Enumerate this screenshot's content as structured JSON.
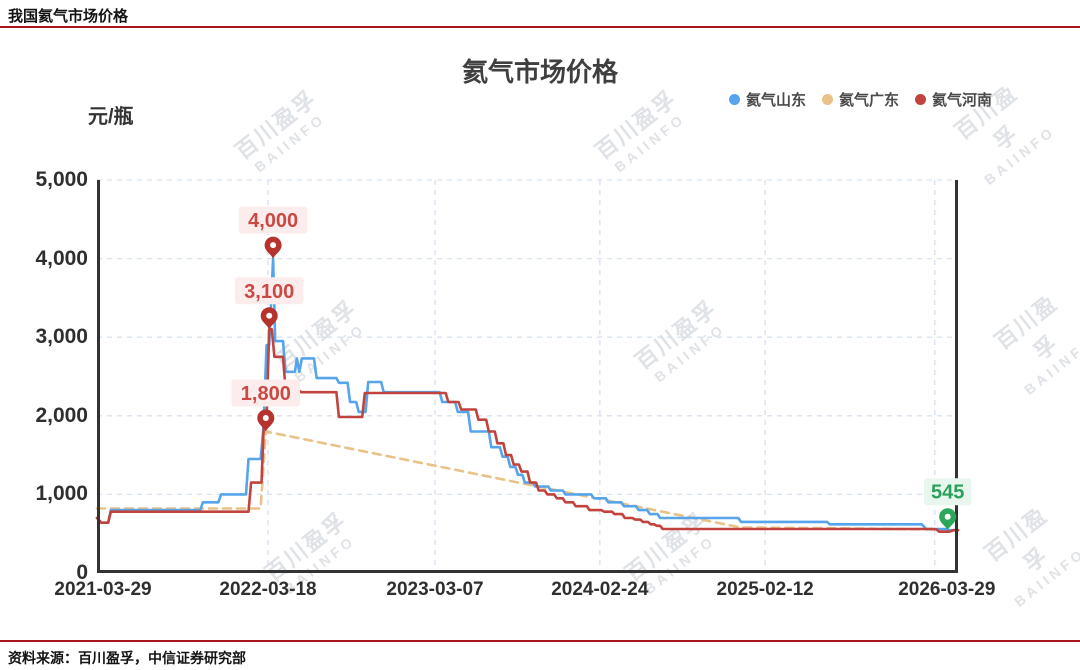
{
  "header": {
    "title": "我国氦气市场价格"
  },
  "footer": {
    "source": "资料来源：百川盈孚，中信证券研究部"
  },
  "watermark": {
    "line1": "百川盈孚",
    "line2": "BAIINFO"
  },
  "chart": {
    "title": "氦气市场价格",
    "unit": "元/瓶",
    "legend": [
      {
        "label": "氦气山东",
        "color": "#55a4ec"
      },
      {
        "label": "氦气广东",
        "color": "#e9c289"
      },
      {
        "label": "氦气河南",
        "color": "#c2433d"
      }
    ]
  },
  "chart_data": {
    "type": "line",
    "title": "氦气市场价格",
    "ylabel": "元/瓶",
    "ylim": [
      0,
      5000
    ],
    "grid": true,
    "legend_position": "top-right",
    "y_ticks": [
      {
        "label": "0",
        "value": 0,
        "grid": false
      },
      {
        "label": "1,000",
        "value": 1000,
        "grid": true
      },
      {
        "label": "2,000",
        "value": 2000,
        "grid": true
      },
      {
        "label": "3,000",
        "value": 3000,
        "grid": true
      },
      {
        "label": "4,000",
        "value": 4000,
        "grid": true
      },
      {
        "label": "5,000",
        "value": 5000,
        "grid": true
      }
    ],
    "x_ticks": [
      {
        "label": "2021-03-29",
        "f_label": 0.007,
        "f_grid": null
      },
      {
        "label": "2022-03-18",
        "f_label": 0.1986,
        "f_grid": 0.1986
      },
      {
        "label": "2023-03-07",
        "f_label": 0.3926,
        "f_grid": 0.3926
      },
      {
        "label": "2024-02-24",
        "f_label": 0.584,
        "f_grid": 0.584
      },
      {
        "label": "2025-02-12",
        "f_label": 0.776,
        "f_grid": 0.776
      },
      {
        "label": "2026-03-29",
        "f_label": 0.987,
        "f_grid": 0.973
      }
    ],
    "colors": {
      "red": {
        "pin": "#b6332e",
        "text": "#c94943",
        "bg": "#fcecec"
      },
      "green": {
        "pin": "#2aa75c",
        "text": "#2aa05a",
        "bg": "#e9f6ee"
      },
      "grid_h": "#d7e3f0",
      "grid_v": "#dadcf3",
      "axis": "#333333"
    },
    "series": [
      {
        "id": "guangdong",
        "name": "氦气广东",
        "color": "#e9c289",
        "dashed": true,
        "points": [
          [
            0,
            820
          ],
          [
            0.19,
            820
          ],
          [
            0.196,
            1800
          ],
          [
            0.747,
            580
          ],
          [
            0.85,
            570
          ],
          [
            0.97,
            555
          ],
          [
            1,
            545
          ]
        ]
      },
      {
        "id": "shandong",
        "name": "氦气山东",
        "color": "#55a4ec",
        "dashed": false,
        "points": [
          [
            0,
            700
          ],
          [
            0.005,
            640
          ],
          [
            0.013,
            640
          ],
          [
            0.016,
            800
          ],
          [
            0.12,
            800
          ],
          [
            0.123,
            900
          ],
          [
            0.141,
            900
          ],
          [
            0.144,
            1000
          ],
          [
            0.173,
            1000
          ],
          [
            0.176,
            1450
          ],
          [
            0.19,
            1450
          ],
          [
            0.193,
            1800
          ],
          [
            0.197,
            2900
          ],
          [
            0.2,
            2900
          ],
          [
            0.2045,
            4000
          ],
          [
            0.207,
            2950
          ],
          [
            0.216,
            2950
          ],
          [
            0.219,
            2560
          ],
          [
            0.23,
            2560
          ],
          [
            0.232,
            2730
          ],
          [
            0.235,
            2560
          ],
          [
            0.238,
            2730
          ],
          [
            0.252,
            2730
          ],
          [
            0.255,
            2480
          ],
          [
            0.278,
            2480
          ],
          [
            0.281,
            2420
          ],
          [
            0.291,
            2420
          ],
          [
            0.294,
            2175
          ],
          [
            0.301,
            2175
          ],
          [
            0.304,
            2050
          ],
          [
            0.312,
            2050
          ],
          [
            0.315,
            2430
          ],
          [
            0.33,
            2430
          ],
          [
            0.333,
            2300
          ],
          [
            0.398,
            2300
          ],
          [
            0.401,
            2175
          ],
          [
            0.416,
            2175
          ],
          [
            0.419,
            2050
          ],
          [
            0.431,
            2050
          ],
          [
            0.434,
            1800
          ],
          [
            0.455,
            1800
          ],
          [
            0.458,
            1600
          ],
          [
            0.468,
            1600
          ],
          [
            0.471,
            1480
          ],
          [
            0.477,
            1480
          ],
          [
            0.48,
            1350
          ],
          [
            0.486,
            1350
          ],
          [
            0.489,
            1250
          ],
          [
            0.494,
            1250
          ],
          [
            0.497,
            1150
          ],
          [
            0.506,
            1150
          ],
          [
            0.509,
            1100
          ],
          [
            0.524,
            1100
          ],
          [
            0.527,
            1050
          ],
          [
            0.541,
            1050
          ],
          [
            0.544,
            1000
          ],
          [
            0.574,
            1000
          ],
          [
            0.577,
            950
          ],
          [
            0.591,
            950
          ],
          [
            0.594,
            900
          ],
          [
            0.609,
            900
          ],
          [
            0.612,
            850
          ],
          [
            0.626,
            850
          ],
          [
            0.629,
            800
          ],
          [
            0.639,
            800
          ],
          [
            0.642,
            750
          ],
          [
            0.651,
            750
          ],
          [
            0.654,
            700
          ],
          [
            0.745,
            700
          ],
          [
            0.748,
            650
          ],
          [
            0.848,
            650
          ],
          [
            0.851,
            620
          ],
          [
            0.958,
            620
          ],
          [
            0.963,
            560
          ],
          [
            0.985,
            560
          ],
          [
            0.988,
            545
          ],
          [
            1,
            545
          ]
        ]
      },
      {
        "id": "henan",
        "name": "氦气河南",
        "color": "#c2433d",
        "dashed": false,
        "points": [
          [
            0,
            700
          ],
          [
            0.005,
            640
          ],
          [
            0.013,
            640
          ],
          [
            0.016,
            780
          ],
          [
            0.176,
            780
          ],
          [
            0.179,
            1150
          ],
          [
            0.191,
            1150
          ],
          [
            0.194,
            1950
          ],
          [
            0.197,
            1950
          ],
          [
            0.2,
            3100
          ],
          [
            0.203,
            3100
          ],
          [
            0.206,
            2750
          ],
          [
            0.216,
            2750
          ],
          [
            0.219,
            2330
          ],
          [
            0.234,
            2330
          ],
          [
            0.237,
            2300
          ],
          [
            0.278,
            2300
          ],
          [
            0.281,
            1985
          ],
          [
            0.308,
            1985
          ],
          [
            0.311,
            2290
          ],
          [
            0.405,
            2290
          ],
          [
            0.408,
            2175
          ],
          [
            0.42,
            2175
          ],
          [
            0.423,
            2080
          ],
          [
            0.44,
            2080
          ],
          [
            0.443,
            1950
          ],
          [
            0.452,
            1950
          ],
          [
            0.455,
            1800
          ],
          [
            0.462,
            1800
          ],
          [
            0.465,
            1650
          ],
          [
            0.472,
            1650
          ],
          [
            0.475,
            1500
          ],
          [
            0.481,
            1500
          ],
          [
            0.484,
            1380
          ],
          [
            0.49,
            1380
          ],
          [
            0.493,
            1290
          ],
          [
            0.5,
            1290
          ],
          [
            0.503,
            1150
          ],
          [
            0.51,
            1150
          ],
          [
            0.513,
            1050
          ],
          [
            0.52,
            1050
          ],
          [
            0.523,
            1000
          ],
          [
            0.531,
            1000
          ],
          [
            0.534,
            950
          ],
          [
            0.541,
            950
          ],
          [
            0.544,
            900
          ],
          [
            0.553,
            900
          ],
          [
            0.556,
            850
          ],
          [
            0.569,
            850
          ],
          [
            0.572,
            800
          ],
          [
            0.586,
            800
          ],
          [
            0.589,
            780
          ],
          [
            0.598,
            780
          ],
          [
            0.601,
            750
          ],
          [
            0.61,
            750
          ],
          [
            0.613,
            700
          ],
          [
            0.622,
            700
          ],
          [
            0.625,
            680
          ],
          [
            0.631,
            680
          ],
          [
            0.634,
            650
          ],
          [
            0.64,
            650
          ],
          [
            0.643,
            620
          ],
          [
            0.647,
            620
          ],
          [
            0.65,
            600
          ],
          [
            0.654,
            600
          ],
          [
            0.657,
            560
          ],
          [
            0.97,
            560
          ],
          [
            0.975,
            555
          ],
          [
            0.978,
            525
          ],
          [
            0.99,
            525
          ],
          [
            0.995,
            545
          ],
          [
            1,
            545
          ]
        ]
      }
    ],
    "annotations": [
      {
        "label": "4,000",
        "f": 0.2045,
        "value": 4000,
        "theme": "red",
        "series": "shandong"
      },
      {
        "label": "3,100",
        "f": 0.2,
        "value": 3100,
        "theme": "red",
        "series": "henan"
      },
      {
        "label": "1,800",
        "f": 0.196,
        "value": 1800,
        "theme": "red",
        "series": "guangdong"
      },
      {
        "label": "545",
        "f": 0.988,
        "value": 545,
        "theme": "green",
        "series": "henan"
      }
    ]
  }
}
